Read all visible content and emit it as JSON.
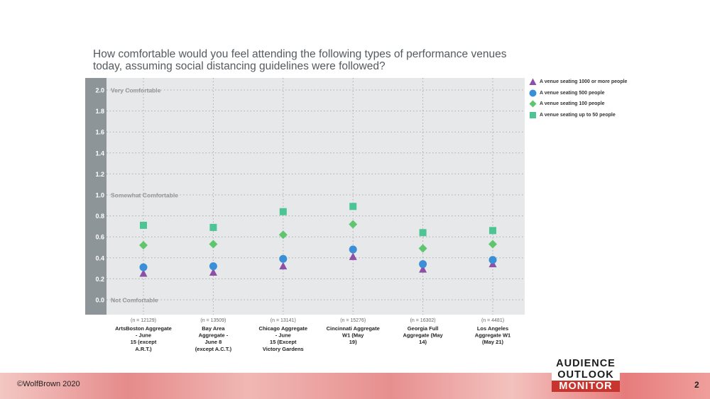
{
  "title": "How comfortable would you feel attending the following types of performance venues today, assuming social distancing guidelines were followed?",
  "colors": {
    "plot_bg": "#e6e8e9",
    "axis_band": "#8e9598",
    "grid": "#a9adaf",
    "series": [
      "#8e4fa6",
      "#3b8fd6",
      "#5fc66f",
      "#4cc493"
    ]
  },
  "chart_data": {
    "type": "scatter",
    "ylim": [
      -0.1,
      2.1
    ],
    "yticks": [
      "0.0",
      "0.2",
      "0.4",
      "0.6",
      "0.8",
      "1.0",
      "1.2",
      "1.4",
      "1.6",
      "1.8",
      "2.0"
    ],
    "annotations": [
      {
        "y": 2.0,
        "text": "Very Comfortable"
      },
      {
        "y": 1.0,
        "text": "Somewhat Comfortable"
      },
      {
        "y": 0.0,
        "text": "Not Comfortable"
      }
    ],
    "categories": [
      {
        "lines": [
          "ArtsBoston Aggregate",
          "- June",
          "15 (except",
          "A.R.T.)"
        ],
        "n": "(n = 12129)"
      },
      {
        "lines": [
          "Bay Area",
          "Aggregate -",
          "June 8",
          "(except A.C.T.)"
        ],
        "n": "(n = 13509)"
      },
      {
        "lines": [
          "Chicago Aggregate",
          "- June",
          "15 (Except",
          "Victory Gardens"
        ],
        "n": "(n = 13141)"
      },
      {
        "lines": [
          "Cincinnati Aggregate",
          "W1 (May",
          "19)"
        ],
        "n": "(n = 15276)"
      },
      {
        "lines": [
          "Georgia Full",
          "Aggregate (May",
          "14)"
        ],
        "n": "(n = 16302)"
      },
      {
        "lines": [
          "Los Angeles",
          "Aggregate W1",
          "(May 21)"
        ],
        "n": "(n = 4481)"
      }
    ],
    "series": [
      {
        "name": "A venue seating 1000 or more people",
        "marker": "triangle",
        "values": [
          0.25,
          0.26,
          0.32,
          0.41,
          0.29,
          0.34
        ]
      },
      {
        "name": "A venue seating 500 people",
        "marker": "circle",
        "values": [
          0.31,
          0.32,
          0.39,
          0.48,
          0.34,
          0.38
        ]
      },
      {
        "name": "A venue seating 100 people",
        "marker": "diamond",
        "values": [
          0.52,
          0.53,
          0.62,
          0.72,
          0.49,
          0.53
        ]
      },
      {
        "name": "A venue seating up to 50 people",
        "marker": "square",
        "values": [
          0.71,
          0.69,
          0.84,
          0.89,
          0.64,
          0.66
        ]
      }
    ]
  },
  "footer": {
    "copyright": "©WolfBrown 2020",
    "page": "2",
    "logo": [
      "AUDIENCE",
      "OUTLOOK",
      "MONITOR"
    ]
  }
}
